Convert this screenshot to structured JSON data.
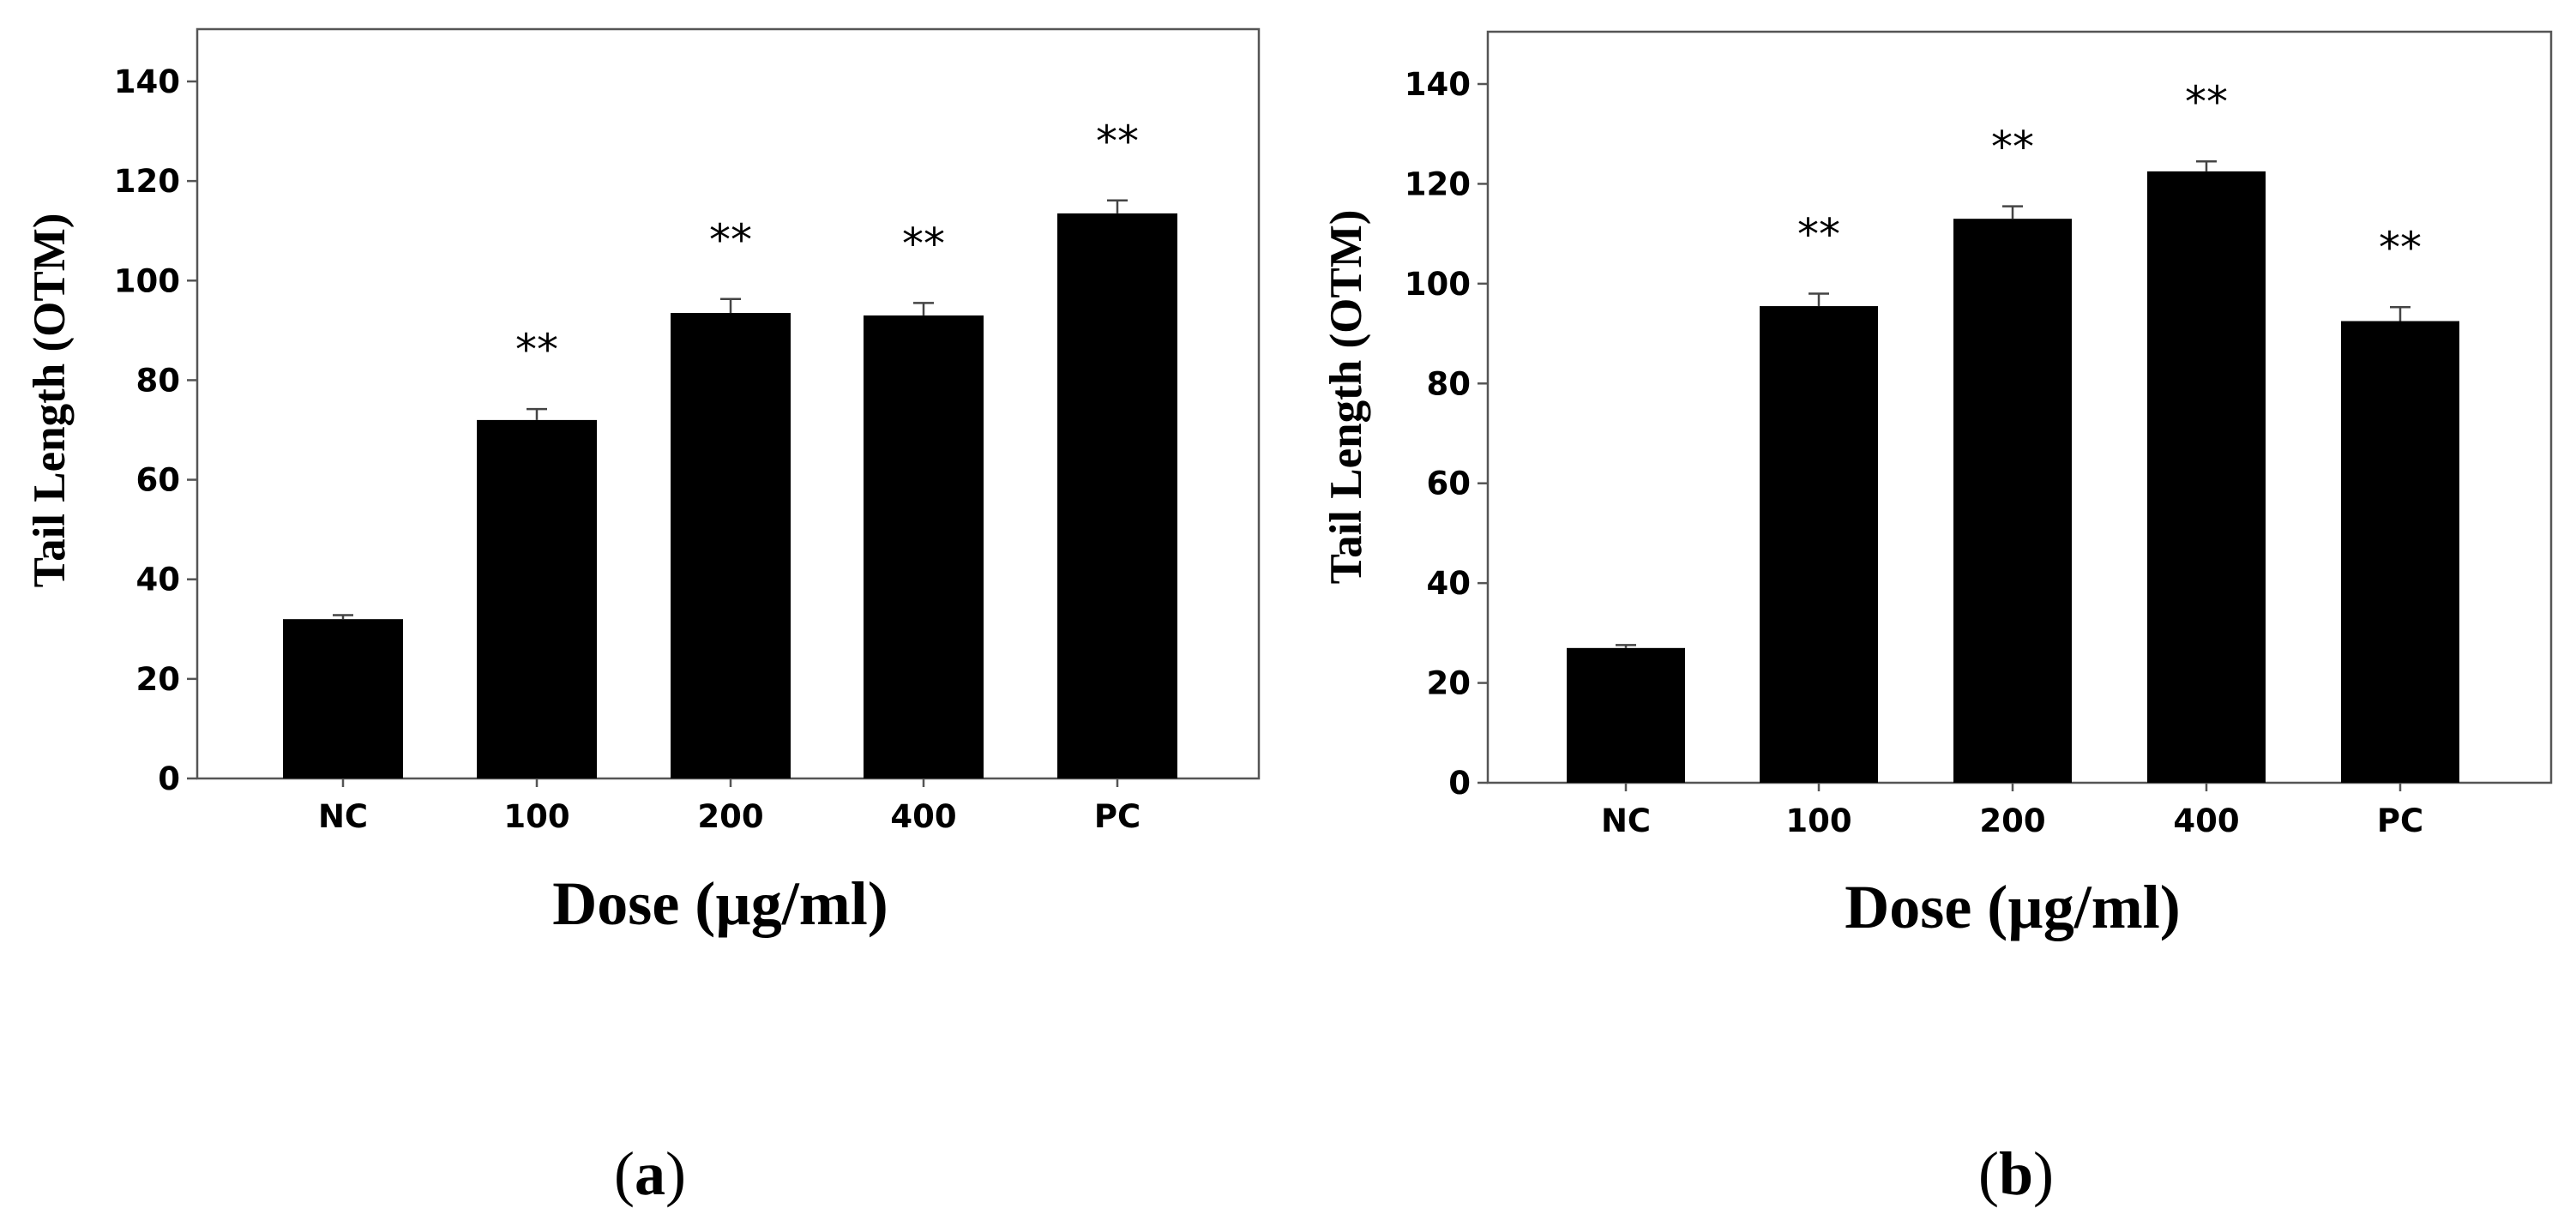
{
  "chart_data": [
    {
      "type": "bar",
      "panel": "a",
      "categories": [
        "NC",
        "100",
        "200",
        "400",
        "PC"
      ],
      "values": [
        32,
        72,
        93.5,
        93,
        113.5
      ],
      "errors": [
        0.8,
        2.2,
        2.8,
        2.5,
        2.6
      ],
      "annotations": [
        "",
        "**",
        "**",
        "**",
        "**"
      ],
      "ylabel": "Tail Length (OTM)",
      "xlabel": "Dose (µg/ml)",
      "ylim": [
        0,
        150
      ],
      "yticks": [
        0,
        20,
        40,
        60,
        80,
        100,
        120,
        140
      ],
      "bar_color": "#000000",
      "grid": false
    },
    {
      "type": "bar",
      "panel": "b",
      "categories": [
        "NC",
        "100",
        "200",
        "400",
        "PC"
      ],
      "values": [
        27,
        95.5,
        113,
        122.5,
        92.5
      ],
      "errors": [
        0.6,
        2.5,
        2.5,
        2,
        2.8
      ],
      "annotations": [
        "",
        "**",
        "**",
        "**",
        "**"
      ],
      "ylabel": "Tail Length  (OTM)",
      "xlabel": "Dose (µg/ml)",
      "ylim": [
        0,
        150
      ],
      "yticks": [
        0,
        20,
        40,
        60,
        80,
        100,
        120,
        140
      ],
      "bar_color": "#000000",
      "grid": false
    }
  ],
  "panels": {
    "a": {
      "open": "(",
      "letter": "a",
      "close": ")"
    },
    "b": {
      "open": "(",
      "letter": "b",
      "close": ")"
    }
  }
}
